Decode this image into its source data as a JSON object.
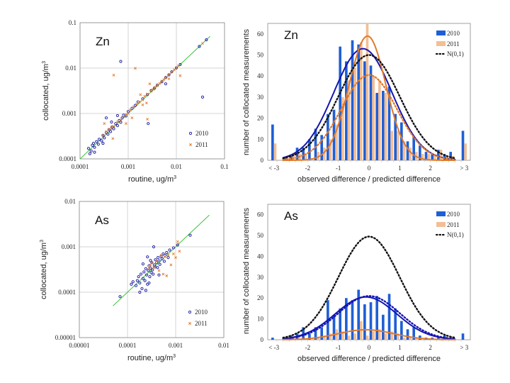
{
  "colors": {
    "s2010_scatter": "#2a2aa8",
    "s2011_scatter": "#e07a2c",
    "s2010_bar": "#1f5fd6",
    "s2011_bar": "#f2bf96",
    "fit2010": "#1515b0",
    "fit2011": "#e07a2c",
    "normal": "#111111",
    "oneToOne": "#3cc43c",
    "grid": "#c8c8c8",
    "frame": "#8a8a8a"
  },
  "chart_data": [
    {
      "id": "zn-scatter",
      "type": "scatter",
      "title": "Zn",
      "xlabel": "routine,  ug/m",
      "ylabel": "collocated,  ug/m",
      "unit_superscript": "3",
      "xscale": "log",
      "yscale": "log",
      "xlim": [
        0.0001,
        0.1
      ],
      "ylim": [
        0.0001,
        0.1
      ],
      "xticks": [
        "0.0001",
        "0.001",
        "0.01",
        "0.1"
      ],
      "yticks": [
        "0.0001",
        "0.001",
        "0.01",
        "0.1"
      ],
      "grid": true,
      "legend": [
        "2010",
        "2011"
      ],
      "legend_position": "bottom-right",
      "one_to_one_line": [
        0.0001,
        0.05
      ],
      "series": [
        {
          "name": "2010",
          "marker": "circle",
          "points": [
            [
              0.00015,
              0.00017
            ],
            [
              0.00017,
              0.00015
            ],
            [
              0.00018,
              0.0002
            ],
            [
              0.0002,
              0.00018
            ],
            [
              0.00019,
              0.00022
            ],
            [
              0.00022,
              0.00024
            ],
            [
              0.00024,
              0.00021
            ],
            [
              0.00025,
              0.00027
            ],
            [
              0.00028,
              0.00025
            ],
            [
              0.0003,
              0.00033
            ],
            [
              0.00032,
              0.00029
            ],
            [
              0.00035,
              0.00038
            ],
            [
              0.00038,
              0.00035
            ],
            [
              0.0004,
              0.00044
            ],
            [
              0.00043,
              0.0004
            ],
            [
              0.00046,
              0.0005
            ],
            [
              0.0005,
              0.00046
            ],
            [
              0.00055,
              0.0006
            ],
            [
              0.0006,
              0.00054
            ],
            [
              0.00065,
              0.0007
            ],
            [
              0.0007,
              0.00064
            ],
            [
              0.00075,
              0.0008
            ],
            [
              0.0008,
              0.00092
            ],
            [
              0.0009,
              0.00088
            ],
            [
              0.001,
              0.0011
            ],
            [
              0.0012,
              0.0013
            ],
            [
              0.0014,
              0.0015
            ],
            [
              0.0016,
              0.0018
            ],
            [
              0.002,
              0.0021
            ],
            [
              0.0025,
              0.0026
            ],
            [
              0.003,
              0.0032
            ],
            [
              0.0035,
              0.0036
            ],
            [
              0.004,
              0.0042
            ],
            [
              0.005,
              0.005
            ],
            [
              0.006,
              0.0062
            ],
            [
              0.007,
              0.0071
            ],
            [
              0.008,
              0.0083
            ],
            [
              0.01,
              0.0101
            ],
            [
              0.012,
              0.012
            ],
            [
              0.0007,
              0.014
            ],
            [
              0.035,
              0.0023
            ],
            [
              0.0026,
              0.0006
            ],
            [
              0.006,
              0.0045
            ],
            [
              0.042,
              0.042
            ],
            [
              0.03,
              0.03
            ],
            [
              0.0002,
              0.00014
            ],
            [
              0.00016,
              0.00013
            ],
            [
              0.0003,
              0.00022
            ],
            [
              0.00045,
              0.00065
            ],
            [
              0.00035,
              0.0008
            ],
            [
              0.0006,
              0.0009
            ]
          ]
        },
        {
          "name": "2011",
          "marker": "x",
          "points": [
            [
              0.0003,
              0.00033
            ],
            [
              0.00035,
              0.0004
            ],
            [
              0.0004,
              0.00045
            ],
            [
              0.00045,
              0.0005
            ],
            [
              0.0005,
              0.00052
            ],
            [
              0.0006,
              0.00065
            ],
            [
              0.0007,
              0.00072
            ],
            [
              0.0008,
              0.00085
            ],
            [
              0.0009,
              0.00095
            ],
            [
              0.001,
              0.001
            ],
            [
              0.0011,
              0.0012
            ],
            [
              0.0013,
              0.0014
            ],
            [
              0.0015,
              0.0016
            ],
            [
              0.0017,
              0.0018
            ],
            [
              0.002,
              0.002
            ],
            [
              0.0022,
              0.0024
            ],
            [
              0.0025,
              0.0027
            ],
            [
              0.003,
              0.0031
            ],
            [
              0.0033,
              0.0034
            ],
            [
              0.0036,
              0.0038
            ],
            [
              0.004,
              0.0041
            ],
            [
              0.0045,
              0.0046
            ],
            [
              0.005,
              0.0052
            ],
            [
              0.0055,
              0.0056
            ],
            [
              0.006,
              0.0061
            ],
            [
              0.007,
              0.0071
            ],
            [
              0.008,
              0.0082
            ],
            [
              0.009,
              0.0092
            ],
            [
              0.01,
              0.0102
            ],
            [
              0.011,
              0.0112
            ],
            [
              0.0005,
              0.007
            ],
            [
              0.0014,
              0.0099
            ],
            [
              0.0025,
              0.00075
            ],
            [
              0.002,
              0.00155
            ],
            [
              0.0012,
              0.0008
            ],
            [
              0.012,
              0.0068
            ],
            [
              0.035,
              0.035
            ],
            [
              0.00048,
              0.00028
            ],
            [
              0.00032,
              0.0006
            ],
            [
              0.0018,
              0.0026
            ],
            [
              0.0028,
              0.0045
            ],
            [
              0.0024,
              0.0017
            ],
            [
              0.007,
              0.0058
            ],
            [
              0.0009,
              0.0006
            ]
          ]
        }
      ]
    },
    {
      "id": "zn-histogram",
      "type": "bar",
      "title": "Zn",
      "xlabel": "observed difference / predicted difference",
      "ylabel": "number of collocated measurements",
      "xlim": [
        -3,
        3
      ],
      "ylim": [
        0,
        65
      ],
      "yticks": [
        0,
        10,
        20,
        30,
        40,
        50,
        60
      ],
      "xtick_labels": [
        "< -3",
        "-2",
        "-1",
        "0",
        "1",
        "2",
        "> 3"
      ],
      "grid": false,
      "legend": [
        "2010",
        "2011",
        "N(0,1)"
      ],
      "legend_position": "top-right",
      "bin_centers": [
        -3.1,
        -2.7,
        -2.5,
        -2.3,
        -2.1,
        -1.9,
        -1.7,
        -1.5,
        -1.3,
        -1.1,
        -0.9,
        -0.7,
        -0.5,
        -0.3,
        -0.1,
        0.1,
        0.3,
        0.5,
        0.7,
        0.9,
        1.1,
        1.3,
        1.5,
        1.7,
        1.9,
        2.1,
        2.3,
        2.5,
        2.7,
        3.1
      ],
      "series": [
        {
          "name": "2010",
          "values": [
            17,
            1,
            2,
            6,
            6,
            10,
            15,
            12,
            22,
            24,
            54,
            47,
            57,
            55,
            47,
            45,
            32,
            33,
            35,
            22,
            18,
            9,
            11,
            7,
            4,
            3,
            5,
            3,
            4,
            14
          ]
        },
        {
          "name": "2011",
          "values": [
            8,
            1,
            3,
            3,
            3,
            1,
            4,
            6,
            10,
            17,
            30,
            38,
            44,
            56,
            65,
            40,
            38,
            32,
            14,
            14,
            9,
            6,
            4,
            3,
            3,
            2,
            5,
            2,
            2,
            8
          ]
        }
      ],
      "curves": [
        {
          "name": "fit-2010",
          "style": "solid",
          "mean": -0.2,
          "sd": 0.95,
          "peak": 53
        },
        {
          "name": "fit-2011",
          "style": "solid",
          "mean": -0.05,
          "sd": 0.6,
          "peak": 59
        },
        {
          "name": "fit-2011-dotted",
          "style": "dotted",
          "mean": 0.0,
          "sd": 0.9,
          "peak": 40.5
        },
        {
          "name": "N(0,1)",
          "style": "dotted",
          "mean": 0.0,
          "sd": 1.0,
          "peak": 50
        }
      ]
    },
    {
      "id": "as-scatter",
      "type": "scatter",
      "title": "As",
      "xlabel": "routine,  ug/m",
      "ylabel": "collocated,  ug/m",
      "unit_superscript": "3",
      "xscale": "log",
      "yscale": "log",
      "xlim": [
        1e-05,
        0.01
      ],
      "ylim": [
        1e-05,
        0.01
      ],
      "xticks": [
        "0.00001",
        "0.0001",
        "0.001",
        "0.01"
      ],
      "yticks": [
        "0.00001",
        "0.0001",
        "0.001",
        "0.01"
      ],
      "grid": true,
      "legend": [
        "2010",
        "2011"
      ],
      "legend_position": "bottom-right",
      "one_to_one_line": [
        5e-05,
        0.005
      ],
      "series": [
        {
          "name": "2010",
          "marker": "circle",
          "points": [
            [
              7e-05,
              8e-05
            ],
            [
              0.00012,
              0.00015
            ],
            [
              0.00013,
              0.00017
            ],
            [
              0.00015,
              0.00014
            ],
            [
              0.00016,
              0.00018
            ],
            [
              0.00017,
              0.00022
            ],
            [
              0.00018,
              0.00016
            ],
            [
              0.00019,
              0.00025
            ],
            [
              0.0002,
              0.00012
            ],
            [
              0.00021,
              0.0002
            ],
            [
              0.00022,
              0.00028
            ],
            [
              0.00023,
              0.00018
            ],
            [
              0.00024,
              0.00033
            ],
            [
              0.00025,
              0.00024
            ],
            [
              0.00026,
              0.00015
            ],
            [
              0.00027,
              0.0003
            ],
            [
              0.00028,
              0.00038
            ],
            [
              0.00029,
              0.00022
            ],
            [
              0.0003,
              0.00034
            ],
            [
              0.00031,
              0.00027
            ],
            [
              0.00032,
              0.00045
            ],
            [
              0.00033,
              0.00031
            ],
            [
              0.00034,
              0.00025
            ],
            [
              0.00035,
              0.001
            ],
            [
              0.00036,
              0.0004
            ],
            [
              0.00037,
              0.00036
            ],
            [
              0.00038,
              0.00052
            ],
            [
              0.0004,
              0.00045
            ],
            [
              0.00042,
              0.00035
            ],
            [
              0.00043,
              0.00058
            ],
            [
              0.00045,
              0.00049
            ],
            [
              0.00047,
              0.00041
            ],
            [
              0.0005,
              0.00062
            ],
            [
              0.00052,
              0.00055
            ],
            [
              0.00055,
              0.0007
            ],
            [
              0.00058,
              0.00048
            ],
            [
              0.0006,
              0.00065
            ],
            [
              0.00065,
              0.00075
            ],
            [
              0.0007,
              0.00058
            ],
            [
              0.00075,
              0.00085
            ],
            [
              0.0009,
              0.00095
            ],
            [
              0.0011,
              0.0011
            ],
            [
              0.002,
              0.0018
            ],
            [
              0.00018,
              0.0001
            ],
            [
              0.00024,
              0.00011
            ],
            [
              0.00028,
              0.00016
            ],
            [
              0.00045,
              0.00024
            ],
            [
              0.00021,
              0.00042
            ],
            [
              0.0003,
              0.0005
            ],
            [
              0.00026,
              0.0006
            ]
          ]
        },
        {
          "name": "2011",
          "marker": "x",
          "points": [
            [
              0.0003,
              0.0004
            ],
            [
              0.00035,
              0.00035
            ],
            [
              0.0004,
              0.00048
            ],
            [
              0.00045,
              0.0003
            ],
            [
              0.0005,
              0.00065
            ],
            [
              0.00055,
              0.00025
            ],
            [
              0.0006,
              0.0006
            ],
            [
              0.00065,
              0.00023
            ],
            [
              0.0007,
              0.00065
            ],
            [
              0.0008,
              0.0004
            ],
            [
              0.0009,
              0.0007
            ],
            [
              0.001,
              0.00058
            ],
            [
              0.0011,
              0.0013
            ],
            [
              0.0012,
              0.0008
            ],
            [
              0.00028,
              0.00035
            ],
            [
              0.00032,
              0.00045
            ]
          ]
        }
      ]
    },
    {
      "id": "as-histogram",
      "type": "bar",
      "title": "As",
      "xlabel": "observed difference / predicted difference",
      "ylabel": "number of collocated measurements",
      "xlim": [
        -3,
        3
      ],
      "ylim": [
        0,
        65
      ],
      "yticks": [
        0,
        10,
        20,
        30,
        40,
        50,
        60
      ],
      "xtick_labels": [
        "< -3",
        "-2",
        "-1",
        "0",
        "1",
        "2",
        "> 3"
      ],
      "grid": false,
      "legend": [
        "2010",
        "2011",
        "N(0,1)"
      ],
      "legend_position": "top-right",
      "bin_centers": [
        -3.1,
        -2.7,
        -2.5,
        -2.3,
        -2.1,
        -1.9,
        -1.7,
        -1.5,
        -1.3,
        -1.1,
        -0.9,
        -0.7,
        -0.5,
        -0.3,
        -0.1,
        0.1,
        0.3,
        0.5,
        0.7,
        0.9,
        1.1,
        1.3,
        1.5,
        1.7,
        1.9,
        2.1,
        2.3,
        2.5,
        2.7,
        3.1
      ],
      "series": [
        {
          "name": "2010",
          "values": [
            1,
            1,
            2,
            3,
            6,
            3,
            6,
            6,
            19,
            12,
            15,
            20,
            19,
            24,
            17,
            18,
            21,
            12,
            22,
            15,
            9,
            5,
            6,
            2,
            1,
            1,
            1,
            2,
            1,
            3
          ]
        },
        {
          "name": "2011",
          "values": [
            0,
            0,
            0,
            0,
            0,
            1,
            1,
            2,
            3,
            5,
            4,
            2,
            3,
            9,
            2,
            4,
            5,
            3,
            4,
            3,
            1,
            1,
            1,
            0,
            0,
            0,
            0,
            1,
            0,
            0
          ]
        }
      ],
      "curves": [
        {
          "name": "fit-2010",
          "style": "solid",
          "mean": -0.1,
          "sd": 1.0,
          "peak": 20.5
        },
        {
          "name": "fit-2010-dotted",
          "style": "dotted",
          "mean": 0.0,
          "sd": 1.0,
          "peak": 21
        },
        {
          "name": "fit-2011",
          "style": "solid",
          "mean": -0.1,
          "sd": 0.9,
          "peak": 4.8
        },
        {
          "name": "N(0,1)",
          "style": "dotted",
          "mean": 0.0,
          "sd": 1.0,
          "peak": 49.5
        }
      ]
    }
  ]
}
